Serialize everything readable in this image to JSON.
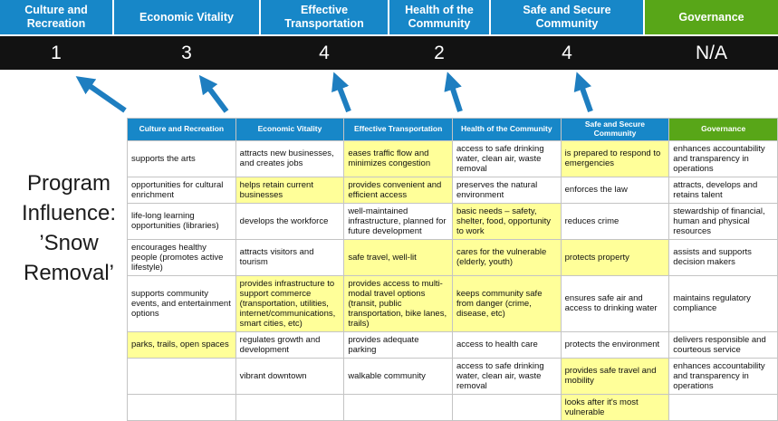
{
  "title": {
    "lines": [
      "Program",
      "Influence:",
      "’Snow",
      "Removal’"
    ]
  },
  "pillars": [
    {
      "label": "Culture and Recreation",
      "score": "1",
      "color": "#1787c8"
    },
    {
      "label": "Economic Vitality",
      "score": "3",
      "color": "#1787c8"
    },
    {
      "label": "Effective Transportation",
      "score": "4",
      "color": "#1787c8"
    },
    {
      "label": "Health of the Community",
      "score": "2",
      "color": "#1787c8"
    },
    {
      "label": "Safe and Secure Community",
      "score": "4",
      "color": "#1787c8"
    },
    {
      "label": "Governance",
      "score": "N/A",
      "color": "#58a618"
    }
  ],
  "matrix": {
    "rows": [
      {
        "cells": [
          {
            "text": "supports the arts",
            "highlight": false
          },
          {
            "text": "attracts new businesses, and creates jobs",
            "highlight": false
          },
          {
            "text": "eases traffic flow and minimizes congestion",
            "highlight": true
          },
          {
            "text": "access to safe drinking water, clean air, waste removal",
            "highlight": false
          },
          {
            "text": "is prepared to respond to emergencies",
            "highlight": true
          },
          {
            "text": "enhances accountability and transparency in operations",
            "highlight": false
          }
        ]
      },
      {
        "cells": [
          {
            "text": "opportunities for cultural enrichment",
            "highlight": false
          },
          {
            "text": "helps retain current businesses",
            "highlight": true
          },
          {
            "text": "provides convenient and efficient access",
            "highlight": true
          },
          {
            "text": "preserves the natural environment",
            "highlight": false
          },
          {
            "text": "enforces the law",
            "highlight": false
          },
          {
            "text": "attracts, develops and retains talent",
            "highlight": false
          }
        ]
      },
      {
        "cells": [
          {
            "text": "life-long learning opportunities (libraries)",
            "highlight": false
          },
          {
            "text": "develops the workforce",
            "highlight": false
          },
          {
            "text": "well-maintained infrastructure, planned for future development",
            "highlight": false
          },
          {
            "text": "basic needs – safety, shelter, food, opportunity to work",
            "highlight": true
          },
          {
            "text": "reduces crime",
            "highlight": false
          },
          {
            "text": "stewardship of financial, human and physical resources",
            "highlight": false
          }
        ]
      },
      {
        "cells": [
          {
            "text": "encourages healthy people (promotes active lifestyle)",
            "highlight": false
          },
          {
            "text": "attracts visitors and tourism",
            "highlight": false
          },
          {
            "text": "safe travel, well-lit",
            "highlight": true
          },
          {
            "text": "cares for the vulnerable (elderly, youth)",
            "highlight": true
          },
          {
            "text": "protects property",
            "highlight": true
          },
          {
            "text": "assists and supports decision makers",
            "highlight": false
          }
        ]
      },
      {
        "cells": [
          {
            "text": "supports community events, and entertainment options",
            "highlight": false
          },
          {
            "text": "provides infrastructure to support commerce (transportation, utilities, internet/communications, smart cities, etc)",
            "highlight": true
          },
          {
            "text": "provides access to multi-modal travel options (transit, public transportation, bike lanes, trails)",
            "highlight": true
          },
          {
            "text": "keeps community safe from danger (crime, disease, etc)",
            "highlight": true
          },
          {
            "text": "ensures safe air and access to drinking water",
            "highlight": false
          },
          {
            "text": "maintains regulatory compliance",
            "highlight": false
          }
        ]
      },
      {
        "cells": [
          {
            "text": "parks, trails, open spaces",
            "highlight": true
          },
          {
            "text": "regulates growth and development",
            "highlight": false
          },
          {
            "text": "provides adequate parking",
            "highlight": false
          },
          {
            "text": "access to health care",
            "highlight": false
          },
          {
            "text": "protects the environment",
            "highlight": false
          },
          {
            "text": "delivers responsible and courteous service",
            "highlight": false
          }
        ]
      },
      {
        "cells": [
          {
            "text": "",
            "highlight": false
          },
          {
            "text": "vibrant downtown",
            "highlight": false
          },
          {
            "text": "walkable community",
            "highlight": false
          },
          {
            "text": "access to safe drinking water, clean air, waste removal",
            "highlight": false
          },
          {
            "text": "provides safe travel and mobility",
            "highlight": true
          },
          {
            "text": "enhances accountability and transparency in operations",
            "highlight": false
          }
        ]
      },
      {
        "cells": [
          {
            "text": "",
            "highlight": false
          },
          {
            "text": "",
            "highlight": false
          },
          {
            "text": "",
            "highlight": false
          },
          {
            "text": "",
            "highlight": false
          },
          {
            "text": "looks after it's most vulnerable",
            "highlight": true
          },
          {
            "text": "",
            "highlight": false
          }
        ]
      }
    ]
  },
  "colors": {
    "header_blue": "#1787c8",
    "header_green": "#58a618",
    "highlight": "#ffff99",
    "score_bar_bg": "#121212",
    "arrow": "#1e7ec0"
  }
}
